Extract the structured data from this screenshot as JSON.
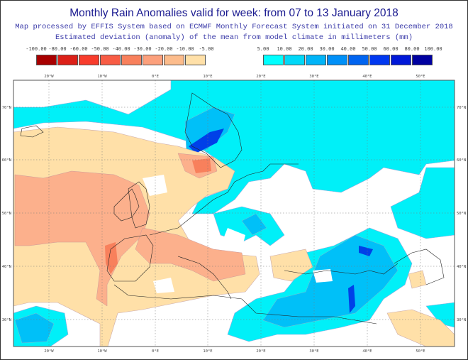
{
  "title": "Monthly Rain Anomalies valid for week: from 07 to 13 January 2018",
  "subtitle1": "Map processed by EFFIS System based on ECMWF Monthly Forecast System initiated on 31 December 2018",
  "subtitle2": "Estimated deviation (anomaly) of the mean from model climate in millimeters (mm)",
  "legend_negative": {
    "labels": [
      "-100.00",
      "-80.00",
      "-60.00",
      "-50.00",
      "-40.00",
      "-30.00",
      "-20.00",
      "-10.00",
      "-5.00"
    ],
    "colors": [
      "#a80000",
      "#dc2018",
      "#f83c2c",
      "#f85c44",
      "#f8805c",
      "#fca07c",
      "#fcbc8c",
      "#ffe0a8"
    ]
  },
  "legend_positive": {
    "labels": [
      "5.00",
      "10.00",
      "20.00",
      "30.00",
      "40.00",
      "50.00",
      "60.00",
      "80.00",
      "100.00"
    ],
    "colors": [
      "#00ffff",
      "#00d8f8",
      "#00b4f8",
      "#0090f8",
      "#0064f0",
      "#0038f0",
      "#0018d8",
      "#0000a0"
    ]
  },
  "axes": {
    "lon_labels": [
      "20°W",
      "10°W",
      "0°E",
      "10°E",
      "20°E",
      "30°E",
      "40°E",
      "50°E"
    ],
    "lat_labels": [
      "70°N",
      "60°N",
      "50°N",
      "40°N",
      "30°N"
    ]
  }
}
